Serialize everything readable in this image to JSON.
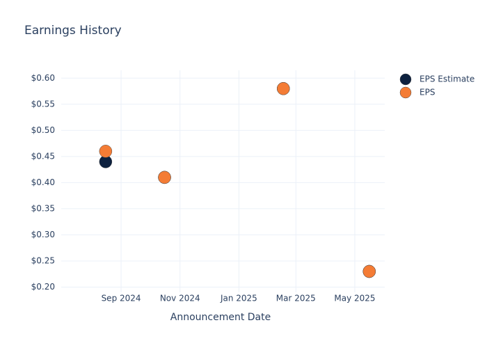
{
  "chart_data": {
    "type": "scatter",
    "title": "Earnings History",
    "x_label": "Announcement Date",
    "x": [
      "2024-08",
      "2024-10",
      "2025-02",
      "2025-05"
    ],
    "series": [
      {
        "name": "EPS Estimate",
        "color": "#0d213f",
        "values": [
          0.44,
          0.41,
          0.58,
          0.23
        ]
      },
      {
        "name": "EPS",
        "color": "#f47c35",
        "values": [
          0.46,
          0.41,
          0.58,
          0.23
        ]
      }
    ],
    "xlim": [
      "2024-07",
      "2025-06"
    ],
    "xticks": [
      {
        "value": "2024-09",
        "label": "Sep 2024"
      },
      {
        "value": "2024-11",
        "label": "Nov 2024"
      },
      {
        "value": "2025-01",
        "label": "Jan 2025"
      },
      {
        "value": "2025-03",
        "label": "Mar 2025"
      },
      {
        "value": "2025-05",
        "label": "May 2025"
      }
    ],
    "ylim": [
      0.19,
      0.615
    ],
    "yticks": [
      {
        "value": 0.2,
        "label": "$0.20"
      },
      {
        "value": 0.25,
        "label": "$0.25"
      },
      {
        "value": 0.3,
        "label": "$0.30"
      },
      {
        "value": 0.35,
        "label": "$0.35"
      },
      {
        "value": 0.4,
        "label": "$0.40"
      },
      {
        "value": 0.45,
        "label": "$0.45"
      },
      {
        "value": 0.5,
        "label": "$0.50"
      },
      {
        "value": 0.55,
        "label": "$0.55"
      },
      {
        "value": 0.6,
        "label": "$0.60"
      }
    ],
    "grid": true,
    "legend": "top-right"
  }
}
